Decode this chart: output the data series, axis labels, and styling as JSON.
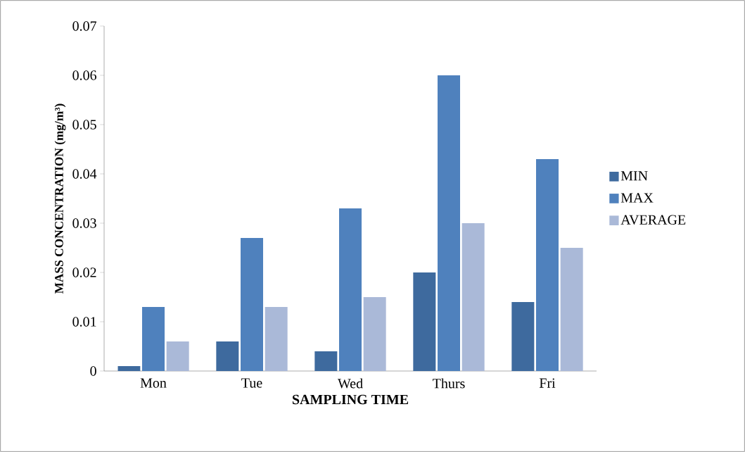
{
  "chart_data": {
    "type": "bar",
    "xlabel": "SAMPLING TIME",
    "ylabel": "MASS CONCENTRATION (mg/m³)",
    "categories": [
      "Mon",
      "Tue",
      "Wed",
      "Thurs",
      "Fri"
    ],
    "series": [
      {
        "name": "MIN",
        "color": "#3e6a9e",
        "values": [
          0.001,
          0.006,
          0.004,
          0.02,
          0.014
        ]
      },
      {
        "name": "MAX",
        "color": "#4f81bd",
        "values": [
          0.013,
          0.027,
          0.033,
          0.06,
          0.043
        ]
      },
      {
        "name": "AVERAGE",
        "color": "#aab9d8",
        "values": [
          0.006,
          0.013,
          0.015,
          0.03,
          0.025
        ]
      }
    ],
    "ylim": [
      0,
      0.07
    ],
    "yticks": [
      0,
      0.01,
      0.02,
      0.03,
      0.04,
      0.05,
      0.06,
      0.07
    ],
    "grid": false,
    "legend": "right"
  }
}
